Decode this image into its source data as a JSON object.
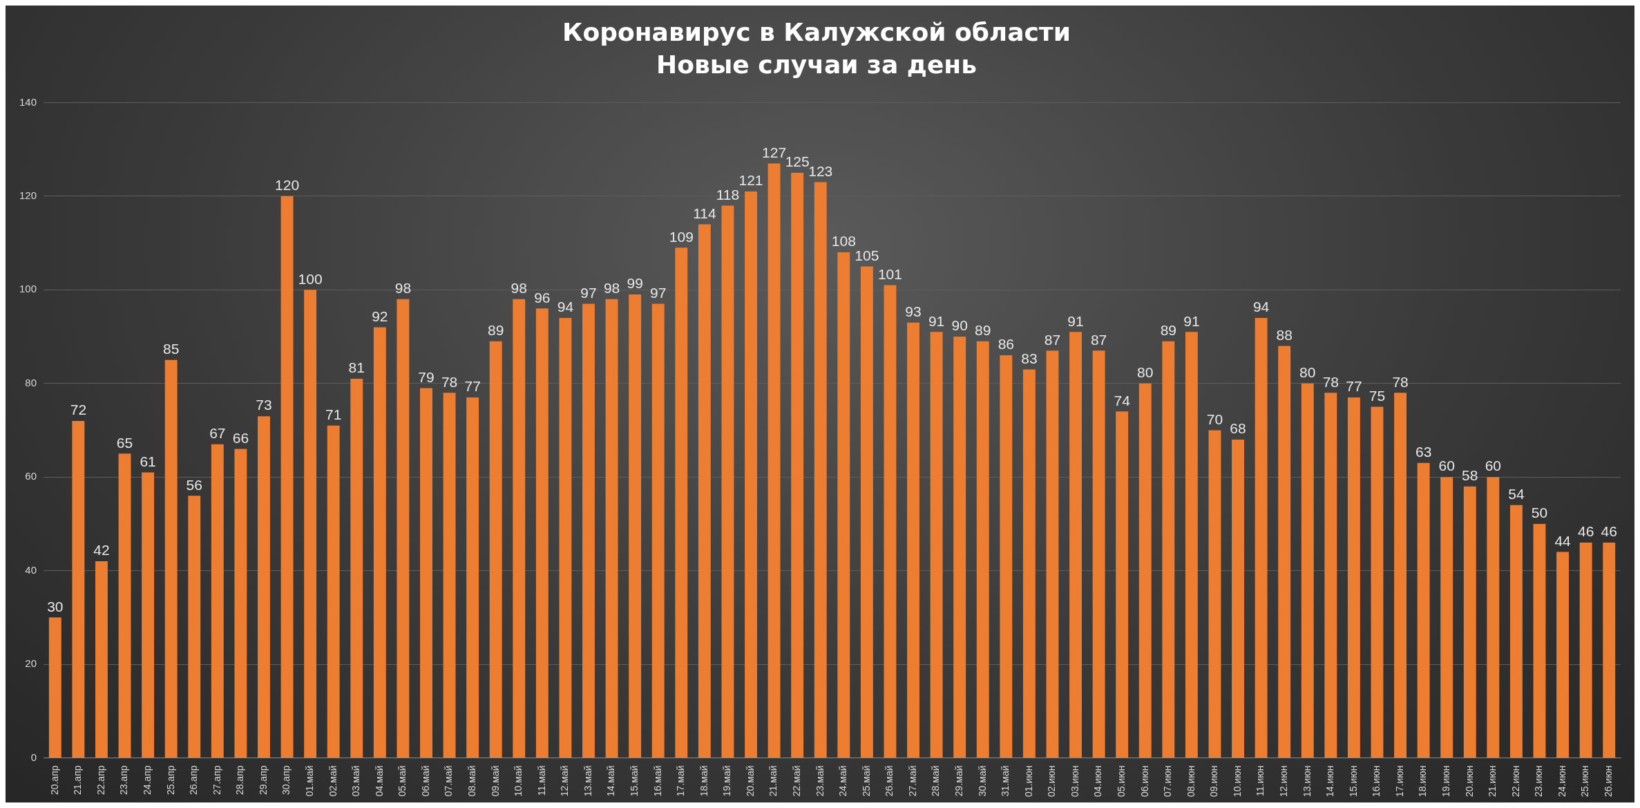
{
  "chart_data": {
    "type": "bar",
    "title": "Коронавирус в Калужской области",
    "subtitle": "Новые случаи за день",
    "categories": [
      "20.апр",
      "21.апр",
      "22.апр",
      "23.апр",
      "24.апр",
      "25.апр",
      "26.апр",
      "27.апр",
      "28.апр",
      "29.апр",
      "30.апр",
      "01.май",
      "02.май",
      "03.май",
      "04.май",
      "05.май",
      "06.май",
      "07.май",
      "08.май",
      "09.май",
      "10.май",
      "11.май",
      "12.май",
      "13.май",
      "14.май",
      "15.май",
      "16.май",
      "17.май",
      "18.май",
      "19.май",
      "20.май",
      "21.май",
      "22.май",
      "23.май",
      "24.май",
      "25.май",
      "26.май",
      "27.май",
      "28.май",
      "29.май",
      "30.май",
      "31.май",
      "01.июн",
      "02.июн",
      "03.июн",
      "04.июн",
      "05.июн",
      "06.июн",
      "07.июн",
      "08.июн",
      "09.июн",
      "10.июн",
      "11.июн",
      "12.июн",
      "13.июн",
      "14.июн",
      "15.июн",
      "16.июн",
      "17.июн",
      "18.июн",
      "19.июн",
      "20.июн",
      "21.июн",
      "22.июн",
      "23.июн",
      "24.июн",
      "25.июн",
      "26.июн"
    ],
    "values": [
      30,
      72,
      42,
      65,
      61,
      85,
      56,
      67,
      66,
      73,
      120,
      100,
      71,
      81,
      92,
      98,
      79,
      78,
      77,
      89,
      98,
      96,
      94,
      97,
      98,
      99,
      97,
      109,
      114,
      118,
      121,
      127,
      125,
      123,
      108,
      105,
      101,
      93,
      91,
      90,
      89,
      86,
      83,
      87,
      91,
      87,
      74,
      80,
      89,
      91,
      70,
      68,
      94,
      88,
      80,
      78,
      77,
      75,
      78,
      63,
      60,
      58,
      60,
      54,
      50,
      44,
      46,
      46
    ],
    "color": "#ed7d31",
    "ylim": [
      0,
      140
    ],
    "yticks": [
      0,
      20,
      40,
      60,
      80,
      100,
      120,
      140
    ],
    "grid": "y",
    "data_labels": true,
    "legend": false
  }
}
